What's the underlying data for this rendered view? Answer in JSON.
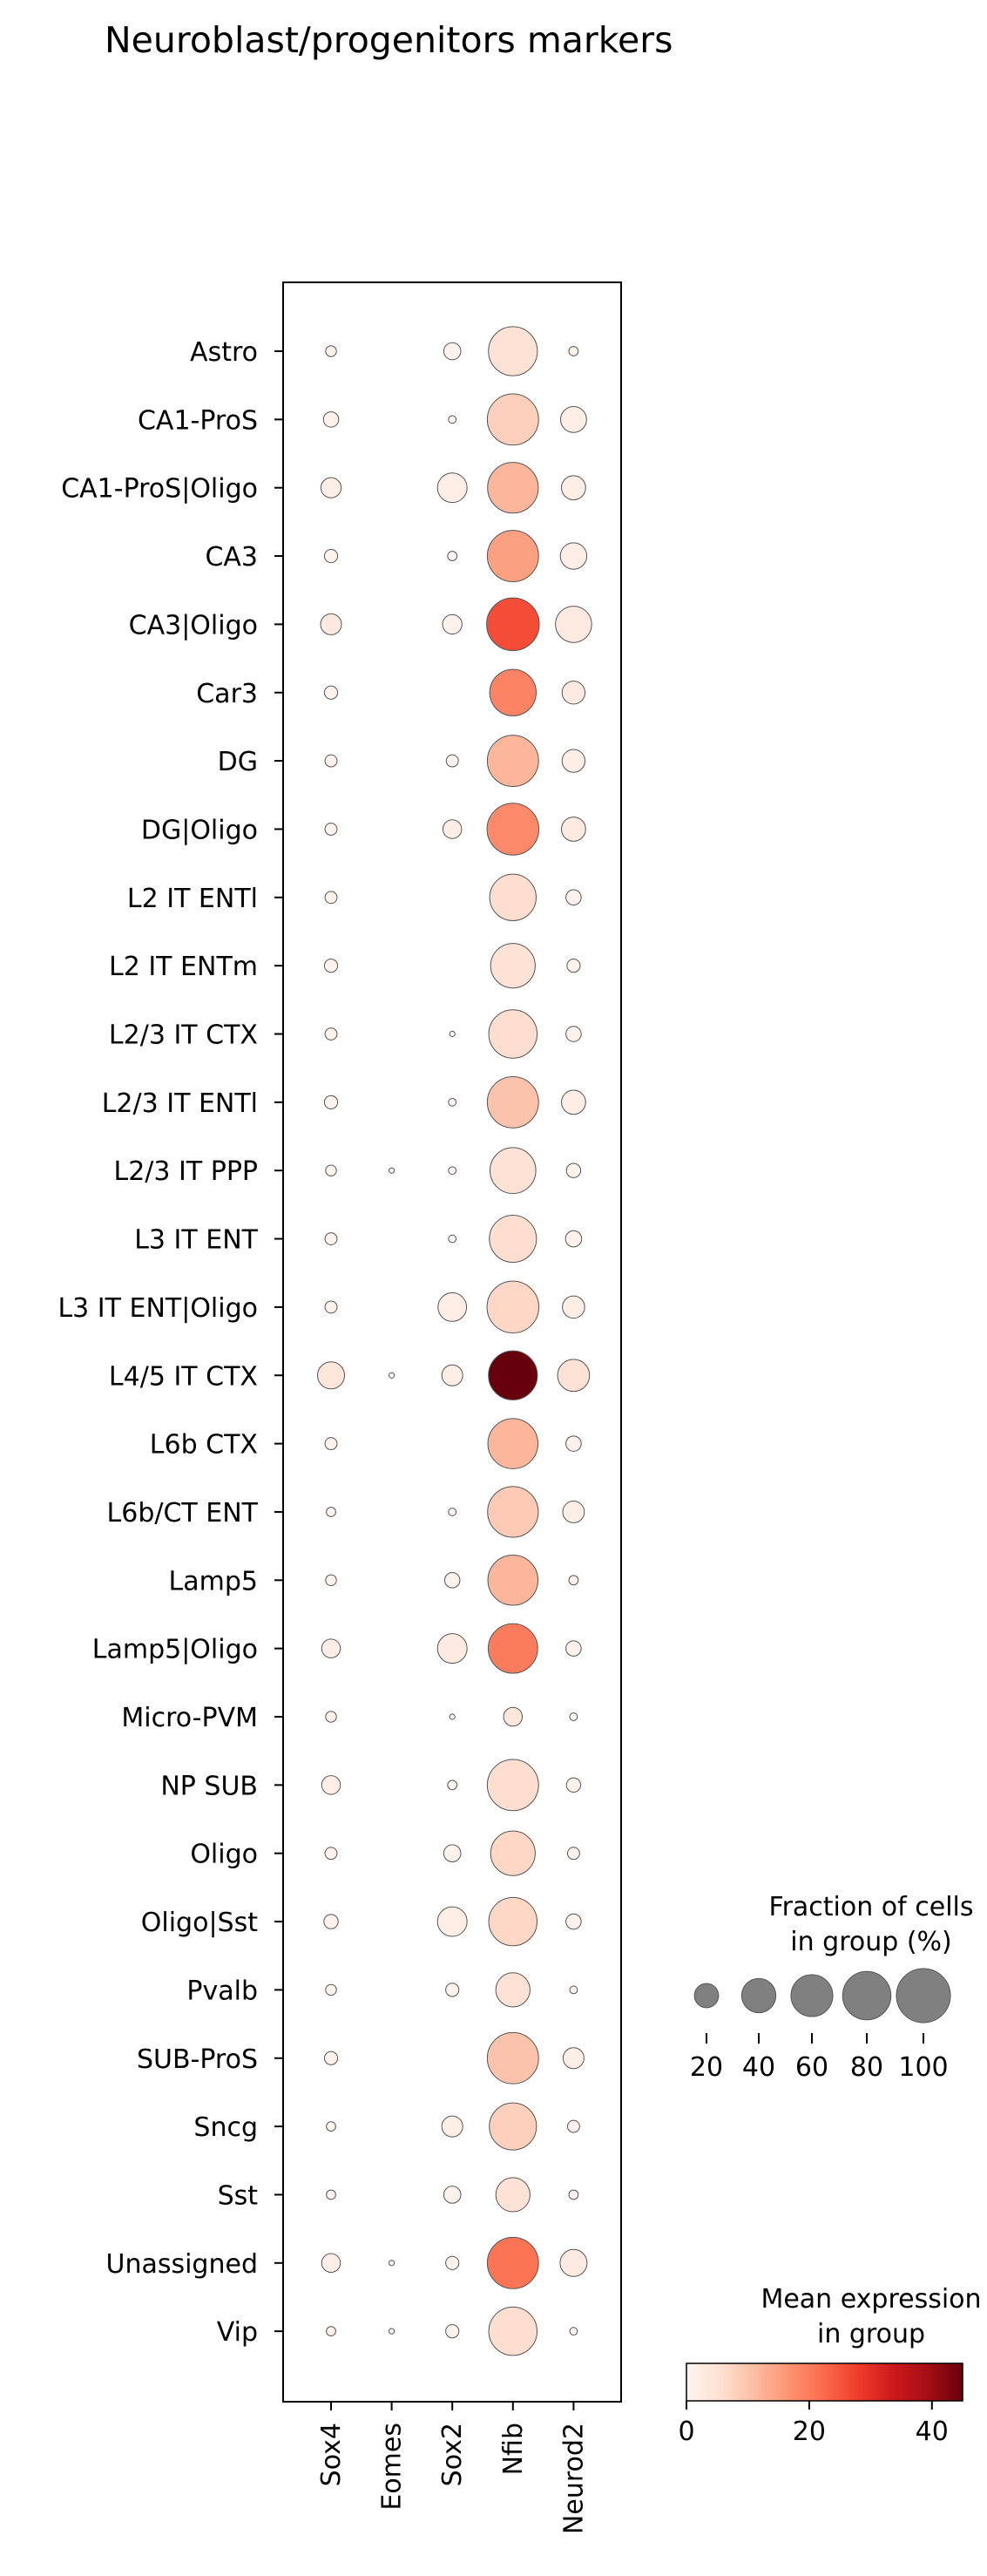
{
  "chart_data": {
    "type": "dotplot",
    "title": "Neuroblast/progenitors markers",
    "genes": [
      "Sox4",
      "Eomes",
      "Sox2",
      "Nfib",
      "Neurod2"
    ],
    "groups": [
      "Astro",
      "CA1-ProS",
      "CA1-ProS|Oligo",
      "CA3",
      "CA3|Oligo",
      "Car3",
      "DG",
      "DG|Oligo",
      "L2 IT ENTl",
      "L2 IT ENTm",
      "L2/3 IT CTX",
      "L2/3 IT ENTl",
      "L2/3 IT PPP",
      "L3 IT ENT",
      "L3 IT ENT|Oligo",
      "L4/5 IT CTX",
      "L6b CTX",
      "L6b/CT ENT",
      "Lamp5",
      "Lamp5|Oligo",
      "Micro-PVM",
      "NP SUB",
      "Oligo",
      "Oligo|Sst",
      "Pvalb",
      "SUB-ProS",
      "Sncg",
      "Sst",
      "Unassigned",
      "Vip"
    ],
    "fraction_pct": [
      [
        4,
        0,
        10,
        82,
        3
      ],
      [
        8,
        0,
        2,
        90,
        23
      ],
      [
        14,
        0,
        30,
        88,
        20
      ],
      [
        6,
        0,
        3,
        90,
        24
      ],
      [
        15,
        0,
        13,
        95,
        45
      ],
      [
        6,
        0,
        0,
        74,
        18
      ],
      [
        5,
        0,
        5,
        90,
        18
      ],
      [
        5,
        0,
        12,
        92,
        20
      ],
      [
        5,
        0,
        0,
        74,
        8
      ],
      [
        6,
        0,
        0,
        68,
        6
      ],
      [
        5,
        0,
        1,
        80,
        8
      ],
      [
        6,
        0,
        2,
        90,
        20
      ],
      [
        4,
        1,
        2,
        72,
        7
      ],
      [
        5,
        0,
        2,
        76,
        9
      ],
      [
        5,
        0,
        28,
        92,
        17
      ],
      [
        25,
        1,
        15,
        82,
        35
      ],
      [
        5,
        0,
        0,
        86,
        8
      ],
      [
        3,
        0,
        2,
        88,
        16
      ],
      [
        4,
        0,
        8,
        86,
        3
      ],
      [
        12,
        0,
        30,
        84,
        8
      ],
      [
        4,
        0,
        1,
        12,
        2
      ],
      [
        12,
        0,
        3,
        90,
        7
      ],
      [
        5,
        0,
        10,
        68,
        5
      ],
      [
        7,
        0,
        30,
        80,
        8
      ],
      [
        4,
        0,
        6,
        40,
        2
      ],
      [
        6,
        0,
        0,
        90,
        15
      ],
      [
        3,
        0,
        15,
        76,
        5
      ],
      [
        3,
        0,
        10,
        40,
        3
      ],
      [
        12,
        1,
        6,
        90,
        25
      ],
      [
        3,
        1,
        6,
        80,
        2
      ]
    ],
    "mean_expression": [
      [
        1,
        0,
        1,
        5,
        1
      ],
      [
        1,
        0,
        0,
        8,
        2
      ],
      [
        2,
        0,
        2,
        12,
        2
      ],
      [
        1,
        0,
        0,
        15,
        2
      ],
      [
        3,
        0,
        1,
        26,
        3
      ],
      [
        1,
        0,
        0,
        19,
        3
      ],
      [
        1,
        0,
        0,
        12,
        2
      ],
      [
        1,
        0,
        2,
        18,
        3
      ],
      [
        1,
        0,
        0,
        6,
        1
      ],
      [
        1,
        0,
        0,
        5,
        1
      ],
      [
        1,
        0,
        0,
        6,
        1
      ],
      [
        1,
        0,
        0,
        10,
        2
      ],
      [
        1,
        0,
        0,
        5,
        1
      ],
      [
        1,
        0,
        0,
        6,
        1
      ],
      [
        1,
        0,
        2,
        7,
        2
      ],
      [
        4,
        0,
        2,
        45,
        5
      ],
      [
        1,
        0,
        0,
        12,
        1
      ],
      [
        1,
        0,
        0,
        9,
        2
      ],
      [
        1,
        0,
        1,
        12,
        1
      ],
      [
        2,
        0,
        3,
        20,
        1
      ],
      [
        1,
        0,
        0,
        4,
        1
      ],
      [
        2,
        0,
        0,
        6,
        1
      ],
      [
        1,
        0,
        1,
        7,
        1
      ],
      [
        1,
        0,
        2,
        7,
        1
      ],
      [
        1,
        0,
        1,
        5,
        1
      ],
      [
        1,
        0,
        0,
        10,
        2
      ],
      [
        1,
        0,
        2,
        8,
        1
      ],
      [
        1,
        0,
        1,
        5,
        1
      ],
      [
        2,
        0,
        1,
        21,
        3
      ],
      [
        1,
        0,
        1,
        6,
        1
      ]
    ],
    "size_legend": {
      "title_line1": "Fraction of cells",
      "title_line2": "in group (%)",
      "values": [
        20,
        40,
        60,
        80,
        100
      ],
      "labels": [
        "20",
        "40",
        "60",
        "80",
        "100"
      ]
    },
    "color_legend": {
      "title_line1": "Mean expression",
      "title_line2": "in group",
      "colormap": "Reds",
      "range": [
        0,
        45
      ],
      "ticks": [
        0,
        20,
        40
      ],
      "tick_labels": [
        "0",
        "20",
        "40"
      ]
    }
  }
}
